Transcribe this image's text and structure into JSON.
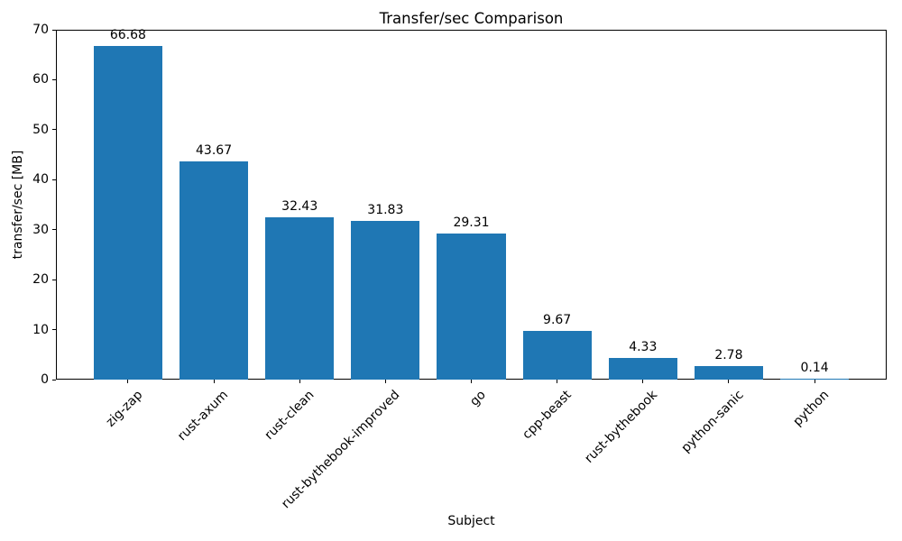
{
  "chart_data": {
    "type": "bar",
    "title": "Transfer/sec Comparison",
    "xlabel": "Subject",
    "ylabel": "transfer/sec [MB]",
    "categories": [
      "zig-zap",
      "rust-axum",
      "rust-clean",
      "rust-bythebook-improved",
      "go",
      "cpp-beast",
      "rust-bythebook",
      "python-sanic",
      "python"
    ],
    "values": [
      66.68,
      43.67,
      32.43,
      31.83,
      29.31,
      9.67,
      4.33,
      2.78,
      0.14
    ],
    "bar_labels": [
      "66.68",
      "43.67",
      "32.43",
      "31.83",
      "29.31",
      "9.67",
      "4.33",
      "2.78",
      "0.14"
    ],
    "ylim": [
      0,
      70
    ],
    "yticks": [
      0,
      10,
      20,
      30,
      40,
      50,
      60,
      70
    ],
    "bar_color": "#1f77b4",
    "grid": false,
    "legend": null,
    "x_tick_rotation_deg": 45,
    "bar_relative_width": 0.8
  }
}
